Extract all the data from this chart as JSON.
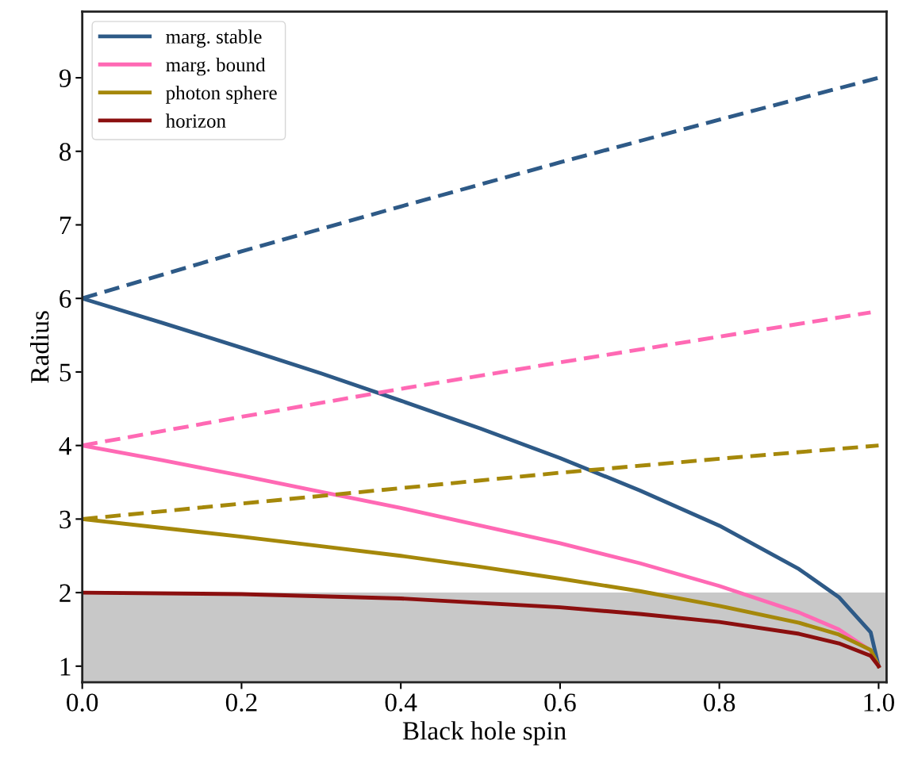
{
  "chart_data": {
    "type": "line",
    "xlabel": "Black hole spin",
    "ylabel": "Radius",
    "xlim": [
      0.0,
      1.01
    ],
    "ylim": [
      0.78,
      9.9
    ],
    "xticks": [
      {
        "value": 0.0,
        "label": "0.0"
      },
      0.2,
      0.4,
      0.6,
      0.8,
      {
        "value": 1.0,
        "label": "1.0"
      }
    ],
    "yticks": [
      1,
      2,
      3,
      4,
      5,
      6,
      7,
      8,
      9
    ],
    "grid": false,
    "legend": "top left",
    "marker": "none",
    "bands": [
      {
        "axis": "y",
        "from": 0.78,
        "to": 2,
        "color": "#c8c8c8"
      }
    ],
    "series": [
      {
        "name": "marg. stable",
        "color": "#2e5a87",
        "line_style": "solid",
        "x": [
          0,
          0.1,
          0.2,
          0.3,
          0.4,
          0.5,
          0.6,
          0.7,
          0.8,
          0.9,
          0.95,
          0.99,
          1.0
        ],
        "values": [
          6,
          5.67,
          5.33,
          4.98,
          4.61,
          4.23,
          3.83,
          3.39,
          2.91,
          2.32,
          1.94,
          1.46,
          1.0
        ]
      },
      {
        "name": "marg. bound",
        "color": "#ff69b4",
        "line_style": "solid",
        "x": [
          0,
          0.1,
          0.2,
          0.3,
          0.4,
          0.5,
          0.6,
          0.7,
          0.8,
          0.9,
          0.95,
          0.99,
          1.0
        ],
        "values": [
          4,
          3.8,
          3.59,
          3.37,
          3.15,
          2.91,
          2.67,
          2.4,
          2.09,
          1.73,
          1.5,
          1.21,
          1.0
        ]
      },
      {
        "name": "photon sphere",
        "color": "#a5880a",
        "line_style": "solid",
        "x": [
          0,
          0.1,
          0.2,
          0.3,
          0.4,
          0.5,
          0.6,
          0.7,
          0.8,
          0.9,
          0.95,
          0.99,
          1.0
        ],
        "values": [
          3,
          2.88,
          2.76,
          2.63,
          2.5,
          2.35,
          2.19,
          2.02,
          1.82,
          1.59,
          1.43,
          1.22,
          1.0
        ]
      },
      {
        "name": "horizon",
        "color": "#8b0f0f",
        "line_style": "solid",
        "x": [
          0,
          0.2,
          0.4,
          0.6,
          0.7,
          0.8,
          0.9,
          0.95,
          0.99,
          1.0
        ],
        "values": [
          2,
          1.98,
          1.92,
          1.8,
          1.71,
          1.6,
          1.44,
          1.31,
          1.14,
          1.0
        ]
      },
      {
        "color": "#2e5a87",
        "line_style": "dashed",
        "x": [
          0,
          0.2,
          0.4,
          0.6,
          0.8,
          1.0
        ],
        "values": [
          6,
          6.64,
          7.25,
          7.85,
          8.43,
          9.0
        ]
      },
      {
        "color": "#ff69b4",
        "line_style": "dashed",
        "x": [
          0,
          0.2,
          0.4,
          0.6,
          0.8,
          0.99
        ],
        "values": [
          4,
          4.39,
          4.77,
          5.13,
          5.48,
          5.81
        ]
      },
      {
        "color": "#a5880a",
        "line_style": "dashed",
        "x": [
          0,
          0.2,
          0.4,
          0.6,
          0.8,
          1.0
        ],
        "values": [
          3,
          3.21,
          3.42,
          3.63,
          3.82,
          4.0
        ]
      }
    ]
  }
}
